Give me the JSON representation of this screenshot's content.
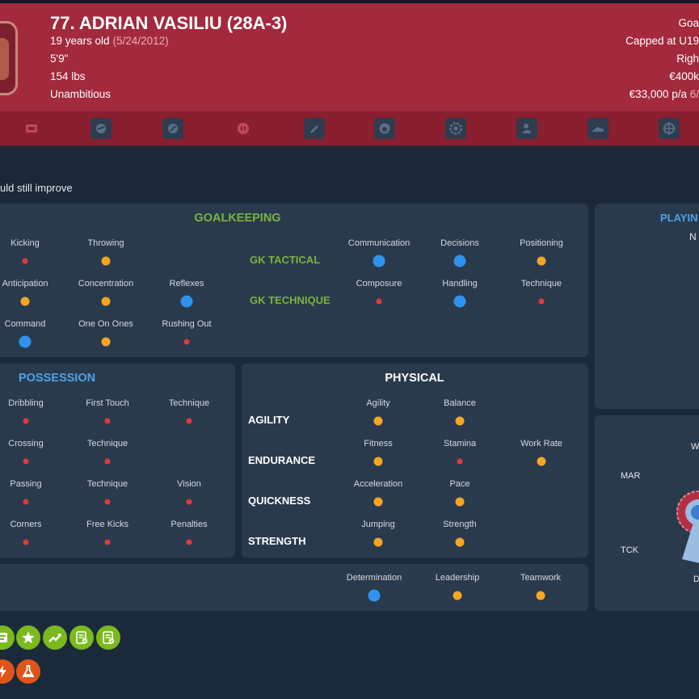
{
  "header": {
    "name": "77. ADRIAN VASILIU (28A-3)",
    "age": "19 years old",
    "dob": "(5/24/2012)",
    "height": "5'9\"",
    "weight": "154 lbs",
    "personality": "Unambitious",
    "position": "Goa",
    "caps": "Capped at U19",
    "foot": "Righ",
    "value": "€400k",
    "wage": "€33,000 p/a",
    "wage_extra": "6/"
  },
  "icon_bar": [
    "id-card-icon",
    "shield-helmet-icon",
    "hammer-sickle-icon",
    "target-icon",
    "boot-icon",
    "helmet-icon",
    "gear-badge-icon",
    "person-icon",
    "shoe-icon",
    "crosshair-icon"
  ],
  "subheader": {
    "note": "uld still improve"
  },
  "goalkeeping": {
    "title": "GOALKEEPING",
    "tactical_label": "GK TACTICAL",
    "technique_label": "GK TECHNIQUE",
    "left": [
      {
        "label": "Kicking",
        "level": "red"
      },
      {
        "label": "Throwing",
        "level": "orange"
      },
      {
        "label": "Anticipation",
        "level": "orange"
      },
      {
        "label": "Concentration",
        "level": "orange"
      },
      {
        "label": "Reflexes",
        "level": "blue"
      },
      {
        "label": "Command",
        "level": "blue"
      },
      {
        "label": "One On Ones",
        "level": "orange"
      },
      {
        "label": "Rushing Out",
        "level": "red"
      }
    ],
    "tactical": [
      {
        "label": "Communication",
        "level": "blue"
      },
      {
        "label": "Decisions",
        "level": "blue"
      },
      {
        "label": "Positioning",
        "level": "orange"
      }
    ],
    "technique": [
      {
        "label": "Composure",
        "level": "red"
      },
      {
        "label": "Handling",
        "level": "blue"
      },
      {
        "label": "Technique",
        "level": "red"
      }
    ]
  },
  "playing": {
    "title": "PLAYIN",
    "value": "N"
  },
  "possession": {
    "title": "POSSESSION",
    "items": [
      {
        "label": "Dribbling",
        "level": "red"
      },
      {
        "label": "First Touch",
        "level": "red"
      },
      {
        "label": "Technique",
        "level": "red"
      },
      {
        "label": "Crossing",
        "level": "red"
      },
      {
        "label": "Technique",
        "level": "red"
      },
      {
        "label": "Passing",
        "level": "red"
      },
      {
        "label": "Technique",
        "level": "red"
      },
      {
        "label": "Vision",
        "level": "red"
      },
      {
        "label": "Corners",
        "level": "red"
      },
      {
        "label": "Free Kicks",
        "level": "red"
      },
      {
        "label": "Penalties",
        "level": "red"
      }
    ]
  },
  "physical": {
    "title": "PHYSICAL",
    "groups": [
      "AGILITY",
      "ENDURANCE",
      "QUICKNESS",
      "STRENGTH"
    ],
    "items": [
      {
        "label": "Agility",
        "level": "orange"
      },
      {
        "label": "Balance",
        "level": "orange"
      },
      {
        "label": "Fitness",
        "level": "orange"
      },
      {
        "label": "Stamina",
        "level": "red"
      },
      {
        "label": "Work Rate",
        "level": "orange"
      },
      {
        "label": "Acceleration",
        "level": "orange"
      },
      {
        "label": "Pace",
        "level": "orange"
      },
      {
        "label": "Jumping",
        "level": "orange"
      },
      {
        "label": "Strength",
        "level": "orange"
      }
    ]
  },
  "mental": {
    "items": [
      {
        "label": "Determination",
        "level": "blue"
      },
      {
        "label": "Leadership",
        "level": "orange"
      },
      {
        "label": "Teamwork",
        "level": "orange"
      }
    ]
  },
  "radar": {
    "labels": [
      "W",
      "MAR",
      "TCK",
      "D"
    ]
  },
  "badges_row1": [
    "scouting-report-icon",
    "star-icon",
    "trending-up-icon",
    "checklist-icon",
    "approved-report-icon"
  ],
  "badges_row2": [
    "lightning-icon",
    "flask-icon"
  ],
  "colors": {
    "header": "#a3293c",
    "iconbar": "#8a1f30",
    "panel": "#2a3a4d",
    "background": "#1b2a3a",
    "green": "#7ab33e",
    "blue": "#4ca3ea",
    "red_dot": "#e03a3a",
    "orange_dot": "#f5a623",
    "blue_dot": "#2f93ee"
  }
}
